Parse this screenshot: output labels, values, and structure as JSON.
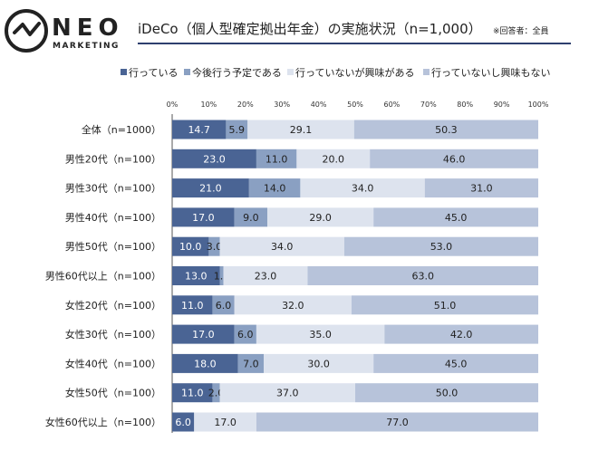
{
  "header": {
    "brand": "NEO",
    "brand_sub": "MARKETING",
    "title": "iDeCo（個人型確定拠出年金）の実施状況（n=1,000）",
    "note": "※回答者：全員"
  },
  "colors": {
    "title_rule": "#2e3f6e",
    "series": [
      "#4a6494",
      "#8aa0c2",
      "#dde3ee",
      "#b7c3da"
    ],
    "label_dark": "#ffffff",
    "label_light": "#222222"
  },
  "chart_data": {
    "type": "bar",
    "orientation": "horizontal",
    "stacked": true,
    "percent": true,
    "xlim": [
      0,
      100
    ],
    "ticks": [
      "0%",
      "10%",
      "20%",
      "30%",
      "40%",
      "50%",
      "60%",
      "70%",
      "80%",
      "90%",
      "100%"
    ],
    "legend_position": "top-right",
    "categories": [
      "全体（n=1000）",
      "男性20代（n=100）",
      "男性30代（n=100）",
      "男性40代（n=100）",
      "男性50代（n=100）",
      "男性60代以上（n=100）",
      "女性20代（n=100）",
      "女性30代（n=100）",
      "女性40代（n=100）",
      "女性50代（n=100）",
      "女性60代以上（n=100）"
    ],
    "series": [
      {
        "name": "行っている",
        "values": [
          14.7,
          23.0,
          21.0,
          17.0,
          10.0,
          13.0,
          11.0,
          17.0,
          18.0,
          11.0,
          6.0
        ],
        "labels": [
          "14.7",
          "23.0",
          "21.0",
          "17.0",
          "10.0",
          "13.0",
          "11.0",
          "17.0",
          "18.0",
          "11.0",
          "6.0"
        ]
      },
      {
        "name": "今後行う予定である",
        "values": [
          5.9,
          11.0,
          14.0,
          9.0,
          3.0,
          1.0,
          6.0,
          6.0,
          7.0,
          2.0,
          0
        ],
        "labels": [
          "5.9",
          "11.0",
          "14.0",
          "9.0",
          "3.0",
          "1.0",
          "6.0",
          "6.0",
          "7.0",
          "2.0",
          ""
        ]
      },
      {
        "name": "行っていないが興味がある",
        "values": [
          29.1,
          20.0,
          34.0,
          29.0,
          34.0,
          23.0,
          32.0,
          35.0,
          30.0,
          37.0,
          17.0
        ],
        "labels": [
          "29.1",
          "20.0",
          "34.0",
          "29.0",
          "34.0",
          "23.0",
          "32.0",
          "35.0",
          "30.0",
          "37.0",
          "17.0"
        ]
      },
      {
        "name": "行っていないし興味もない",
        "values": [
          50.3,
          46.0,
          31.0,
          45.0,
          53.0,
          63.0,
          51.0,
          42.0,
          45.0,
          50.0,
          77.0
        ],
        "labels": [
          "50.3",
          "46.0",
          "31.0",
          "45.0",
          "53.0",
          "63.0",
          "51.0",
          "42.0",
          "45.0",
          "50.0",
          "77.0"
        ]
      }
    ]
  }
}
